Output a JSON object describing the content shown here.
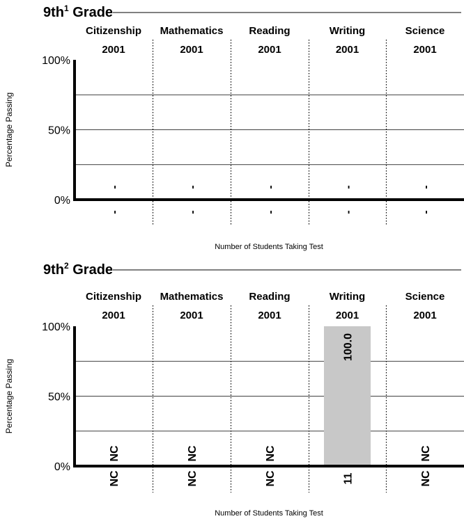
{
  "chart_data": [
    {
      "type": "bar",
      "grade": "9th",
      "grade_sup": "1",
      "grade_word": "Grade",
      "categories": [
        "Citizenship",
        "Mathematics",
        "Reading",
        "Writing",
        "Science"
      ],
      "years": [
        "2001",
        "2001",
        "2001",
        "2001",
        "2001"
      ],
      "values": [
        null,
        null,
        null,
        null,
        null
      ],
      "value_labels": [
        "-",
        "-",
        "-",
        "-",
        "-"
      ],
      "student_counts": [
        "-",
        "-",
        "-",
        "-",
        "-"
      ],
      "ylabel": "Percentage Passing",
      "xlabel": "Number of Students Taking Test",
      "y_ticks": [
        "100%",
        "50%",
        "0%"
      ],
      "ylim": [
        0,
        100
      ],
      "grid": true
    },
    {
      "type": "bar",
      "grade": "9th",
      "grade_sup": "2",
      "grade_word": "Grade",
      "categories": [
        "Citizenship",
        "Mathematics",
        "Reading",
        "Writing",
        "Science"
      ],
      "years": [
        "2001",
        "2001",
        "2001",
        "2001",
        "2001"
      ],
      "values": [
        null,
        null,
        null,
        100.0,
        null
      ],
      "value_labels": [
        "NC",
        "NC",
        "NC",
        "100.0",
        "NC"
      ],
      "student_counts": [
        "NC",
        "NC",
        "NC",
        "11",
        "NC"
      ],
      "ylabel": "Percentage Passing",
      "xlabel": "Number of Students Taking Test",
      "y_ticks": [
        "100%",
        "50%",
        "0%"
      ],
      "ylim": [
        0,
        100
      ],
      "grid": true,
      "bar_color": "#c8c8c8"
    }
  ]
}
